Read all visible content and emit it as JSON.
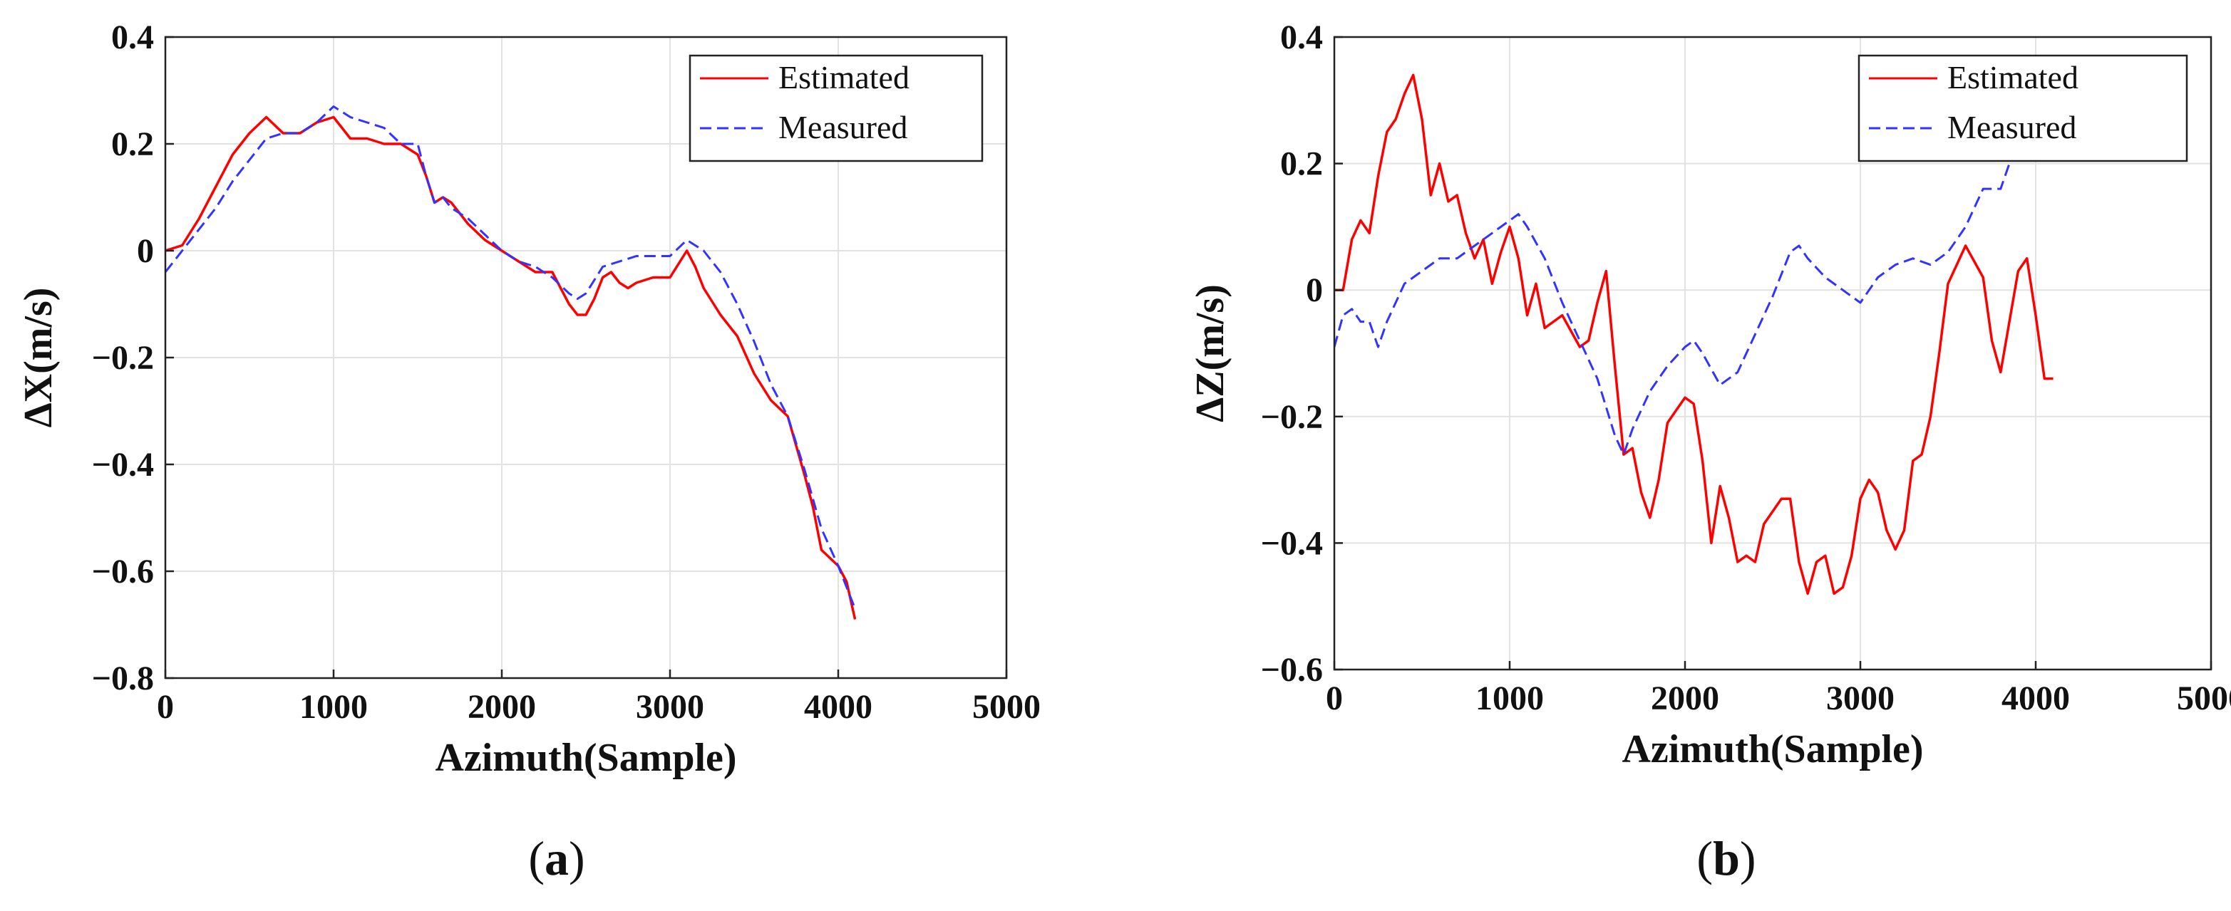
{
  "chart_data": [
    {
      "type": "line",
      "panel_label": "a",
      "xlabel": "Azimuth(Sample)",
      "ylabel": "ΔX(m/s)",
      "xlim": [
        0,
        5000
      ],
      "ylim": [
        -0.8,
        0.4
      ],
      "xticks": [
        0,
        1000,
        2000,
        3000,
        4000,
        5000
      ],
      "xtick_labels": [
        "0",
        "1000",
        "2000",
        "3000",
        "4000",
        "5000"
      ],
      "yticks": [
        0.4,
        0.2,
        0,
        -0.2,
        -0.4,
        -0.6,
        -0.8
      ],
      "ytick_labels": [
        "0.4",
        "0.2",
        "0",
        "−0.2",
        "−0.4",
        "−0.6",
        "−0.8"
      ],
      "grid": true,
      "legend_position": "top-right",
      "series": [
        {
          "name": "Estimated",
          "color": "#ff0000",
          "dash": "solid",
          "x": [
            0,
            100,
            200,
            300,
            400,
            500,
            600,
            700,
            800,
            900,
            1000,
            1100,
            1200,
            1300,
            1400,
            1500,
            1550,
            1600,
            1650,
            1700,
            1800,
            1900,
            2000,
            2100,
            2200,
            2300,
            2400,
            2450,
            2500,
            2550,
            2600,
            2650,
            2700,
            2750,
            2800,
            2900,
            3000,
            3100,
            3150,
            3200,
            3300,
            3400,
            3500,
            3600,
            3700,
            3800,
            3850,
            3900,
            4000,
            4050,
            4100
          ],
          "y": [
            0.0,
            0.01,
            0.06,
            0.12,
            0.18,
            0.22,
            0.25,
            0.22,
            0.22,
            0.24,
            0.25,
            0.21,
            0.21,
            0.2,
            0.2,
            0.18,
            0.14,
            0.09,
            0.1,
            0.09,
            0.05,
            0.02,
            0.0,
            -0.02,
            -0.04,
            -0.04,
            -0.1,
            -0.12,
            -0.12,
            -0.09,
            -0.05,
            -0.04,
            -0.06,
            -0.07,
            -0.06,
            -0.05,
            -0.05,
            0.0,
            -0.03,
            -0.07,
            -0.12,
            -0.16,
            -0.23,
            -0.28,
            -0.31,
            -0.42,
            -0.48,
            -0.56,
            -0.59,
            -0.62,
            -0.69
          ]
        },
        {
          "name": "Measured",
          "color": "#3333ff",
          "dash": "dashed",
          "x": [
            0,
            100,
            200,
            300,
            400,
            500,
            600,
            700,
            800,
            900,
            1000,
            1100,
            1200,
            1300,
            1400,
            1500,
            1550,
            1600,
            1650,
            1700,
            1800,
            1900,
            2000,
            2100,
            2200,
            2300,
            2400,
            2450,
            2500,
            2600,
            2700,
            2800,
            2900,
            3000,
            3100,
            3150,
            3200,
            3300,
            3400,
            3500,
            3600,
            3700,
            3800,
            3900,
            4000,
            4100
          ],
          "y": [
            -0.04,
            0.0,
            0.04,
            0.08,
            0.13,
            0.17,
            0.21,
            0.22,
            0.22,
            0.24,
            0.27,
            0.25,
            0.24,
            0.23,
            0.2,
            0.2,
            0.14,
            0.09,
            0.1,
            0.08,
            0.06,
            0.03,
            0.0,
            -0.02,
            -0.03,
            -0.05,
            -0.08,
            -0.09,
            -0.08,
            -0.03,
            -0.02,
            -0.01,
            -0.01,
            -0.01,
            0.02,
            0.01,
            0.0,
            -0.04,
            -0.1,
            -0.17,
            -0.25,
            -0.31,
            -0.41,
            -0.52,
            -0.59,
            -0.67
          ]
        }
      ]
    },
    {
      "type": "line",
      "panel_label": "b",
      "xlabel": "Azimuth(Sample)",
      "ylabel": "ΔZ(m/s)",
      "xlim": [
        0,
        5000
      ],
      "ylim": [
        -0.6,
        0.4
      ],
      "xticks": [
        0,
        1000,
        2000,
        3000,
        4000,
        5000
      ],
      "xtick_labels": [
        "0",
        "1000",
        "2000",
        "3000",
        "4000",
        "5000"
      ],
      "yticks": [
        0.4,
        0.2,
        0,
        -0.2,
        -0.4,
        -0.6
      ],
      "ytick_labels": [
        "0.4",
        "0.2",
        "0",
        "−0.2",
        "−0.4",
        "−0.6"
      ],
      "grid": true,
      "legend_position": "top-right",
      "series": [
        {
          "name": "Estimated",
          "color": "#ff0000",
          "dash": "solid",
          "x": [
            0,
            50,
            100,
            150,
            200,
            250,
            300,
            350,
            400,
            450,
            500,
            550,
            600,
            650,
            700,
            750,
            800,
            850,
            900,
            950,
            1000,
            1050,
            1100,
            1150,
            1200,
            1300,
            1400,
            1450,
            1500,
            1550,
            1600,
            1650,
            1700,
            1750,
            1800,
            1850,
            1900,
            1950,
            2000,
            2050,
            2100,
            2150,
            2200,
            2250,
            2300,
            2350,
            2400,
            2450,
            2500,
            2550,
            2600,
            2650,
            2700,
            2750,
            2800,
            2850,
            2900,
            2950,
            3000,
            3050,
            3100,
            3150,
            3200,
            3250,
            3300,
            3350,
            3400,
            3450,
            3500,
            3600,
            3700,
            3750,
            3800,
            3850,
            3900,
            3950,
            4000,
            4050,
            4100
          ],
          "y": [
            0.0,
            0.0,
            0.08,
            0.11,
            0.09,
            0.18,
            0.25,
            0.27,
            0.31,
            0.34,
            0.27,
            0.15,
            0.2,
            0.14,
            0.15,
            0.09,
            0.05,
            0.08,
            0.01,
            0.06,
            0.1,
            0.05,
            -0.04,
            0.01,
            -0.06,
            -0.04,
            -0.09,
            -0.08,
            -0.02,
            0.03,
            -0.12,
            -0.26,
            -0.25,
            -0.32,
            -0.36,
            -0.3,
            -0.21,
            -0.19,
            -0.17,
            -0.18,
            -0.27,
            -0.4,
            -0.31,
            -0.36,
            -0.43,
            -0.42,
            -0.43,
            -0.37,
            -0.35,
            -0.33,
            -0.33,
            -0.43,
            -0.48,
            -0.43,
            -0.42,
            -0.48,
            -0.47,
            -0.42,
            -0.33,
            -0.3,
            -0.32,
            -0.38,
            -0.41,
            -0.38,
            -0.27,
            -0.26,
            -0.2,
            -0.1,
            0.01,
            0.07,
            0.02,
            -0.08,
            -0.13,
            -0.05,
            0.03,
            0.05,
            -0.04,
            -0.14,
            -0.14
          ]
        },
        {
          "name": "Measured",
          "color": "#3333ff",
          "dash": "dashed",
          "x": [
            0,
            50,
            100,
            150,
            200,
            250,
            300,
            400,
            500,
            600,
            700,
            800,
            900,
            1000,
            1050,
            1100,
            1200,
            1300,
            1400,
            1500,
            1600,
            1650,
            1700,
            1800,
            1900,
            2000,
            2050,
            2100,
            2200,
            2300,
            2400,
            2500,
            2600,
            2650,
            2700,
            2800,
            2900,
            3000,
            3100,
            3200,
            3300,
            3400,
            3500,
            3600,
            3700,
            3800,
            3850
          ],
          "y": [
            -0.09,
            -0.04,
            -0.03,
            -0.05,
            -0.05,
            -0.09,
            -0.05,
            0.01,
            0.03,
            0.05,
            0.05,
            0.07,
            0.09,
            0.11,
            0.12,
            0.1,
            0.05,
            -0.02,
            -0.08,
            -0.14,
            -0.23,
            -0.26,
            -0.22,
            -0.16,
            -0.12,
            -0.09,
            -0.08,
            -0.1,
            -0.15,
            -0.13,
            -0.07,
            -0.01,
            0.06,
            0.07,
            0.05,
            0.02,
            0.0,
            -0.02,
            0.02,
            0.04,
            0.05,
            0.04,
            0.06,
            0.1,
            0.16,
            0.16,
            0.2
          ]
        }
      ]
    }
  ]
}
